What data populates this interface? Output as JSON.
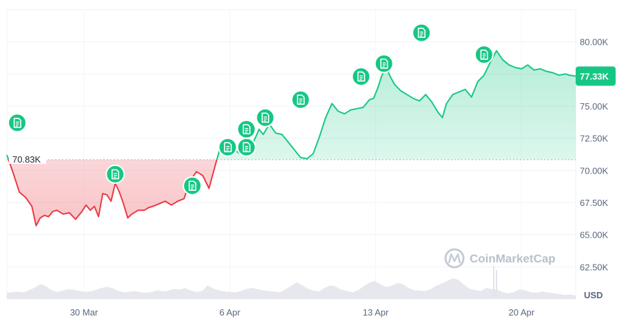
{
  "watermark": "CoinMarketCap",
  "currency": "USD",
  "colors": {
    "up": "#16c784",
    "down": "#ea3943",
    "grid": "#eff2f5",
    "volume": "#e6e8ee",
    "note": "#16c784"
  },
  "chart_data": {
    "type": "area",
    "baseline": 70830,
    "baseline_label": "70.83K",
    "current_value": 77330,
    "current_label": "77.33K",
    "ylim": [
      60000,
      82500
    ],
    "y_ticks": [
      {
        "value": 62500,
        "label": "62.50K"
      },
      {
        "value": 65000,
        "label": "65.00K"
      },
      {
        "value": 67500,
        "label": "67.50K"
      },
      {
        "value": 70000,
        "label": "70.00K"
      },
      {
        "value": 72500,
        "label": "72.50K"
      },
      {
        "value": 75000,
        "label": "75.00K"
      },
      {
        "value": 77500,
        "label": "77.50K"
      },
      {
        "value": 80000,
        "label": "80.00K"
      }
    ],
    "xlim": [
      0,
      27.3
    ],
    "x_ticks": [
      {
        "value": 3.7,
        "label": "30 Mar"
      },
      {
        "value": 10.7,
        "label": "6 Apr"
      },
      {
        "value": 17.7,
        "label": "13 Apr"
      },
      {
        "value": 24.7,
        "label": "20 Apr"
      }
    ],
    "series": [
      {
        "x": [
          0,
          0.3,
          0.6,
          0.9,
          1.2,
          1.4,
          1.6,
          1.8,
          2.0,
          2.2,
          2.4,
          2.7,
          3.0,
          3.3,
          3.6,
          3.8,
          4.0,
          4.2,
          4.4,
          4.6,
          4.8,
          5.0,
          5.2,
          5.4,
          5.6,
          5.8,
          6.0,
          6.3,
          6.6,
          6.8,
          7.0,
          7.3,
          7.6,
          7.9,
          8.2,
          8.5,
          8.8,
          9.1,
          9.4,
          9.7,
          10.0,
          10.3,
          10.6,
          10.9,
          11.2,
          11.5,
          11.8,
          12.0,
          12.1,
          12.3,
          12.6,
          12.9,
          13.2,
          13.5,
          13.8,
          14.1,
          14.4,
          14.7,
          15.0,
          15.3,
          15.6,
          15.9,
          16.2,
          16.5,
          16.8,
          17.1,
          17.4,
          17.6,
          17.8,
          18.0,
          18.2,
          18.4,
          18.6,
          18.9,
          19.2,
          19.5,
          19.8,
          20.1,
          20.4,
          20.7,
          20.9,
          21.1,
          21.4,
          21.7,
          22.0,
          22.3,
          22.6,
          22.9,
          23.2,
          23.5,
          23.8,
          24.1,
          24.4,
          24.7,
          25.0,
          25.3,
          25.6,
          25.9,
          26.2,
          26.5,
          26.8,
          27.0,
          27.3
        ],
        "y": [
          71200,
          69800,
          68300,
          67900,
          67200,
          65700,
          66300,
          66500,
          66400,
          66800,
          66900,
          66600,
          66700,
          66200,
          66800,
          67300,
          66900,
          67200,
          66400,
          68200,
          68100,
          67600,
          69000,
          68300,
          67400,
          66300,
          66600,
          66900,
          66900,
          67100,
          67200,
          67400,
          67600,
          67300,
          67600,
          67800,
          69200,
          69900,
          69600,
          68600,
          70400,
          72100,
          72400,
          71600,
          71300,
          71100,
          72100,
          72800,
          73200,
          72800,
          73600,
          72900,
          72800,
          72200,
          71600,
          71000,
          70900,
          71300,
          72600,
          74100,
          75200,
          74600,
          74400,
          74700,
          74800,
          74900,
          75500,
          75600,
          76400,
          77400,
          78000,
          77300,
          76700,
          76200,
          75900,
          75600,
          75400,
          75900,
          75300,
          74500,
          74100,
          75200,
          75900,
          76100,
          76300,
          75700,
          76900,
          77400,
          78400,
          79300,
          78600,
          78200,
          78000,
          77900,
          78200,
          77800,
          77900,
          77700,
          77600,
          77400,
          77500,
          77400,
          77330
        ]
      }
    ],
    "volume": [
      0.28,
      0.3,
      0.33,
      0.3,
      0.4,
      0.52,
      0.68,
      0.58,
      0.4,
      0.32,
      0.38,
      0.44,
      0.42,
      0.36,
      0.33,
      0.34,
      0.42,
      0.5,
      0.55,
      0.48,
      0.36,
      0.3,
      0.33,
      0.36,
      0.3,
      0.28,
      0.32,
      0.4,
      0.34,
      0.38,
      0.46,
      0.42,
      0.5,
      0.38,
      0.32,
      0.36,
      0.62,
      0.48,
      0.38,
      0.34,
      0.32,
      0.3,
      0.36,
      0.46,
      0.5,
      0.44,
      0.38,
      0.36,
      0.34,
      0.3,
      0.44,
      0.6,
      0.76,
      0.62,
      0.46,
      0.38,
      0.34,
      0.5,
      0.62,
      0.56,
      0.42,
      0.36,
      0.3,
      0.4,
      0.58,
      0.74,
      0.82,
      0.66,
      0.54,
      0.6,
      0.72,
      0.68,
      0.5,
      0.4,
      0.38,
      0.36,
      0.44,
      0.6,
      0.7,
      0.82,
      0.94,
      0.86,
      0.64,
      0.46,
      0.4,
      0.36,
      0.5,
      0.44,
      0.42,
      0.3,
      0.26,
      0.32,
      0.44,
      0.38,
      0.3,
      0.28,
      0.34,
      0.3,
      0.26,
      0.22,
      0.18,
      0.2,
      0.16
    ],
    "annotations": [
      {
        "x": 0.5,
        "y": 73700
      },
      {
        "x": 5.2,
        "y": 69700
      },
      {
        "x": 8.9,
        "y": 68800
      },
      {
        "x": 10.6,
        "y": 71800
      },
      {
        "x": 11.5,
        "y": 71800
      },
      {
        "x": 11.5,
        "y": 73200
      },
      {
        "x": 12.4,
        "y": 74100
      },
      {
        "x": 14.1,
        "y": 75500
      },
      {
        "x": 17.0,
        "y": 77300
      },
      {
        "x": 18.1,
        "y": 78300
      },
      {
        "x": 19.9,
        "y": 80700
      },
      {
        "x": 22.9,
        "y": 79000
      }
    ]
  }
}
